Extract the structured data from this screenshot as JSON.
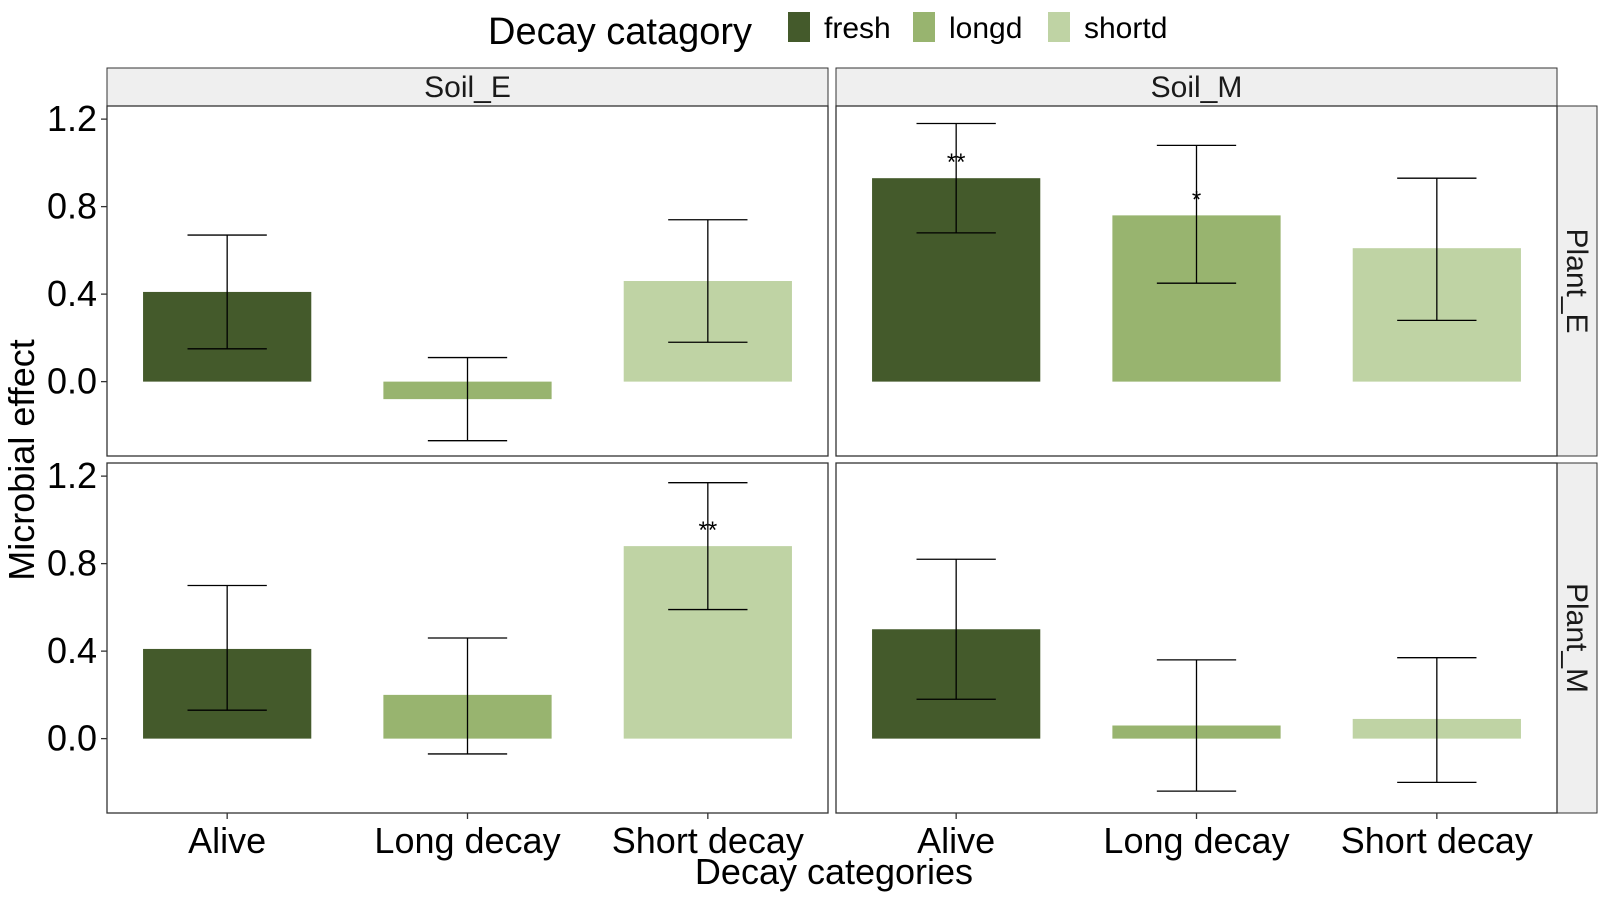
{
  "chart_data": {
    "type": "bar",
    "title": "",
    "xlabel": "Decay categories",
    "ylabel": "Microbial effect",
    "legend": {
      "title": "Decay catagory",
      "position": "top",
      "entries": [
        {
          "key": "fresh",
          "label": "fresh",
          "color": "#445a2b"
        },
        {
          "key": "longd",
          "label": "longd",
          "color": "#98b46f"
        },
        {
          "key": "shortd",
          "label": "shortd",
          "color": "#bfd3a4"
        }
      ]
    },
    "categories": [
      "Alive",
      "Long decay",
      "Short decay"
    ],
    "category_series": [
      "fresh",
      "longd",
      "shortd"
    ],
    "ylim": [
      -0.34,
      1.26
    ],
    "yticks": [
      0.0,
      0.4,
      0.8,
      1.2
    ],
    "ytick_labels": [
      "0.0",
      "0.4",
      "0.8",
      "1.2"
    ],
    "grid": false,
    "col_facets": [
      "Soil_E",
      "Soil_M"
    ],
    "row_facets": [
      "Plant_E",
      "Plant_M"
    ],
    "panels": [
      {
        "col": "Soil_E",
        "row": "Plant_E",
        "values": [
          0.41,
          -0.08,
          0.46
        ],
        "err_low": [
          0.15,
          -0.27,
          0.18
        ],
        "err_high": [
          0.67,
          0.11,
          0.74
        ],
        "sig": [
          "",
          "",
          ""
        ]
      },
      {
        "col": "Soil_M",
        "row": "Plant_E",
        "values": [
          0.93,
          0.76,
          0.61
        ],
        "err_low": [
          0.68,
          0.45,
          0.28
        ],
        "err_high": [
          1.18,
          1.08,
          0.93
        ],
        "sig": [
          "**",
          "*",
          ""
        ]
      },
      {
        "col": "Soil_E",
        "row": "Plant_M",
        "values": [
          0.41,
          0.2,
          0.88
        ],
        "err_low": [
          0.13,
          -0.07,
          0.59
        ],
        "err_high": [
          0.7,
          0.46,
          1.17
        ],
        "sig": [
          "",
          "",
          "**"
        ]
      },
      {
        "col": "Soil_M",
        "row": "Plant_M",
        "values": [
          0.5,
          0.06,
          0.09
        ],
        "err_low": [
          0.18,
          -0.24,
          -0.2
        ],
        "err_high": [
          0.82,
          0.36,
          0.37
        ],
        "sig": [
          "",
          "",
          ""
        ]
      }
    ]
  }
}
